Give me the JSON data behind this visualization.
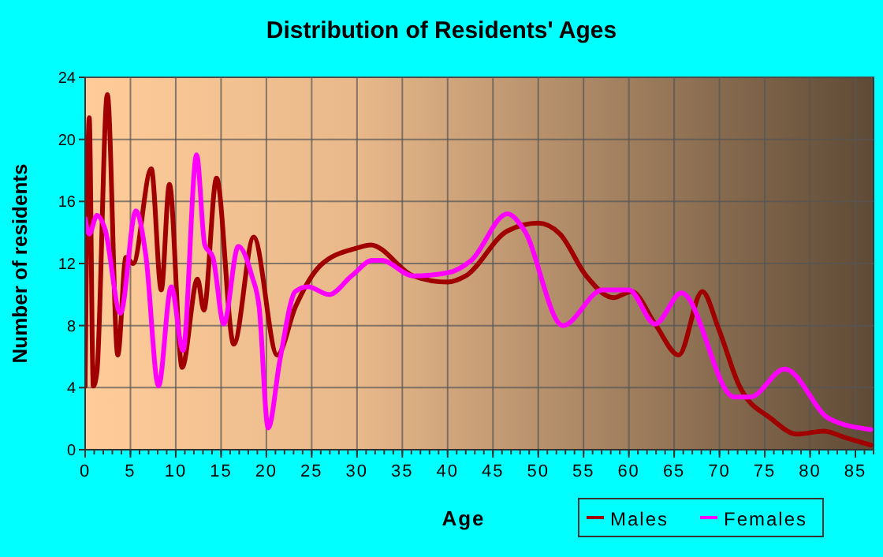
{
  "chart_data": {
    "type": "line",
    "title": "Distribution of Residents' Ages",
    "xlabel": "Age",
    "ylabel": "Number of residents",
    "xlim": [
      0,
      87
    ],
    "ylim": [
      0,
      24
    ],
    "xticks": [
      0,
      5,
      10,
      15,
      20,
      25,
      30,
      35,
      40,
      45,
      50,
      55,
      60,
      65,
      70,
      75,
      80,
      85
    ],
    "yticks": [
      0,
      4,
      8,
      12,
      16,
      20,
      24
    ],
    "grid": true,
    "legend": "bottom right",
    "marker": "none",
    "line_style": "solid",
    "series": [
      {
        "name": "Males",
        "color": "#a00000",
        "x": [
          0,
          0.45,
          0.9,
          1.3,
          2.45,
          3.6,
          4.5,
          5.3,
          7.3,
          8.4,
          9.3,
          10.7,
          12.4,
          13.1,
          14.5,
          16.4,
          18.6,
          21.2,
          23.2,
          26,
          30,
          31.5,
          36.2,
          40,
          42,
          46.6,
          50,
          52.4,
          55.3,
          58.3,
          60.3,
          62.9,
          65.5,
          68.1,
          69.9,
          72.2,
          75.7,
          78.6,
          81.5,
          83.8,
          86.7
        ],
        "values": [
          4.1,
          21.4,
          4.1,
          5,
          22.9,
          6.1,
          12.4,
          12,
          18.1,
          10.3,
          17.1,
          5.3,
          11,
          9,
          17.5,
          6.8,
          13.7,
          6.1,
          9.2,
          11.9,
          13,
          13.2,
          11.2,
          10.8,
          11.2,
          14.1,
          14.6,
          13.9,
          11.2,
          9.8,
          10.2,
          8.1,
          6.1,
          10.2,
          7.8,
          4.1,
          2,
          1,
          1.2,
          0.8,
          0.3
        ]
      },
      {
        "name": "Females",
        "color": "#ff00ff",
        "x": [
          0,
          0.45,
          1.3,
          2.2,
          3.9,
          5.6,
          6.7,
          8.1,
          9.5,
          10.8,
          12.3,
          13.2,
          14.1,
          15.3,
          16.9,
          18.4,
          19.2,
          20.2,
          21.5,
          23.2,
          24.6,
          26.9,
          29.4,
          31.7,
          32.7,
          36.2,
          40,
          42.6,
          46.6,
          48.4,
          52.7,
          57.1,
          60,
          62.9,
          65.8,
          71.6,
          73.4,
          77.2,
          82.1,
          86.7
        ],
        "values": [
          14.9,
          13.9,
          15.1,
          14.2,
          8.8,
          15.4,
          12.5,
          4.1,
          10.5,
          6.4,
          19,
          13.2,
          12.4,
          8.1,
          13.1,
          11.2,
          9.2,
          1.4,
          5.8,
          10.2,
          10.5,
          10,
          11.2,
          12.2,
          12.2,
          11.2,
          11.4,
          12.2,
          15.2,
          14.2,
          8,
          10.3,
          10.3,
          8.1,
          10.1,
          3.4,
          3.4,
          5.2,
          2,
          1.3
        ]
      }
    ]
  }
}
